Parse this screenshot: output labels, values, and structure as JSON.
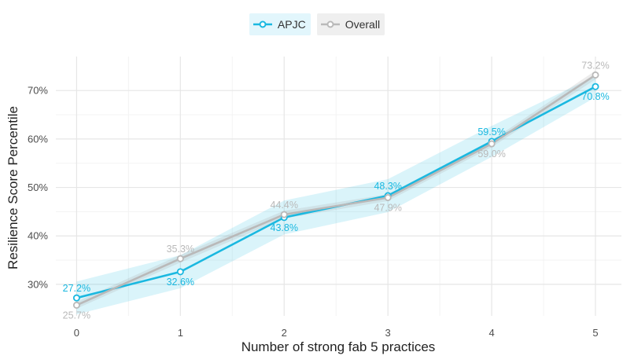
{
  "chart_data": {
    "type": "line",
    "xlabel": "Number of strong fab 5 practices",
    "ylabel": "Resilience Score Percentile",
    "x": [
      0,
      1,
      2,
      3,
      4,
      5
    ],
    "xlim": [
      -0.2,
      5.25
    ],
    "ylim": [
      23.5,
      77
    ],
    "yticks": [
      30,
      40,
      50,
      60,
      70
    ],
    "ytick_labels": [
      "30%",
      "40%",
      "50%",
      "60%",
      "70%"
    ],
    "grid": true,
    "legend": "top-center",
    "series": [
      {
        "name": "APJC",
        "color": "#1ab8e0",
        "values": [
          27.2,
          32.6,
          43.8,
          48.3,
          59.5,
          70.8
        ],
        "labels": [
          "27.2%",
          "32.6%",
          "43.8%",
          "48.3%",
          "59.5%",
          "70.8%"
        ],
        "label_pos": [
          "above",
          "below",
          "below",
          "above",
          "above",
          "below"
        ],
        "ci_low": [
          23.8,
          29.2,
          40.3,
          44.9,
          56.3,
          68.6
        ],
        "ci_high": [
          30.6,
          36.0,
          47.3,
          51.7,
          62.7,
          73.0
        ]
      },
      {
        "name": "Overall",
        "color": "#b9b9b9",
        "values": [
          25.7,
          35.3,
          44.4,
          47.9,
          59.0,
          73.2
        ],
        "labels": [
          "25.7%",
          "35.3%",
          "44.4%",
          "47.9%",
          "59.0%",
          "73.2%"
        ],
        "label_pos": [
          "below",
          "above",
          "above",
          "below",
          "below",
          "above"
        ],
        "ci_low": [
          25.0,
          34.5,
          43.6,
          47.2,
          58.3,
          72.3
        ],
        "ci_high": [
          26.4,
          36.1,
          45.2,
          48.6,
          59.7,
          74.1
        ]
      }
    ]
  },
  "legend": {
    "items": [
      {
        "label": "APJC",
        "color": "#1ab8e0",
        "bg": "#e2f6fc"
      },
      {
        "label": "Overall",
        "color": "#b9b9b9",
        "bg": "#efefef"
      }
    ]
  }
}
